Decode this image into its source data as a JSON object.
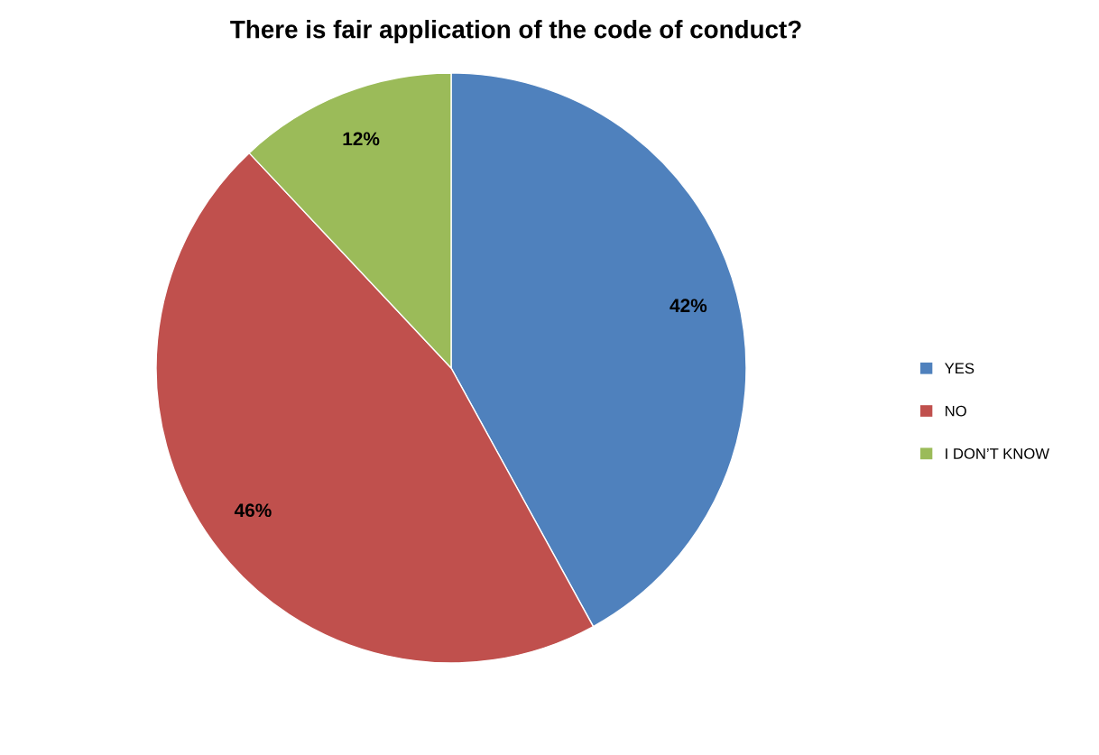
{
  "chart_data": {
    "type": "pie",
    "title": "There is fair application of the code of conduct?",
    "categories": [
      "YES",
      "NO",
      "I DON’T KNOW"
    ],
    "values": [
      42,
      46,
      12
    ],
    "colors": [
      "#4f81bd",
      "#c0504d",
      "#9bbb59"
    ],
    "value_labels": [
      "42%",
      "46%",
      "12%"
    ],
    "legend": "right"
  }
}
